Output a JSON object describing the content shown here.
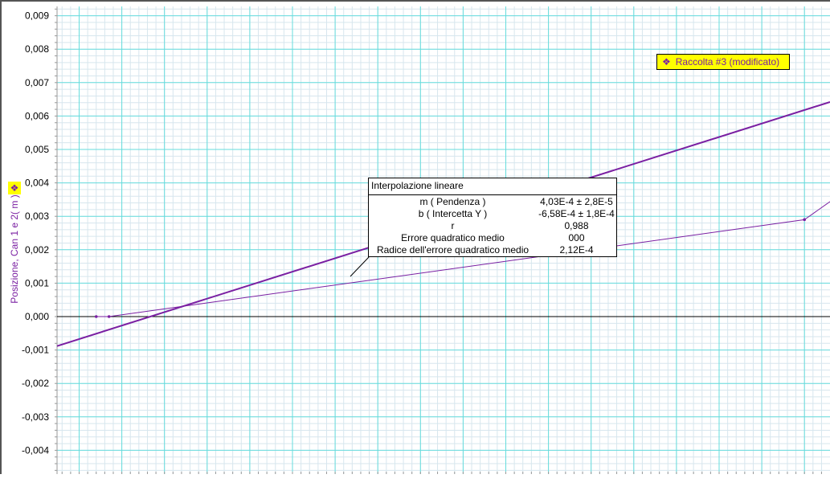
{
  "chart_data": {
    "type": "line",
    "ylabel": "Posizione, Can 1 e 2( m )",
    "ylim": [
      -0.0047,
      0.0093
    ],
    "y_ticks": [
      "0,009",
      "0,008",
      "0,007",
      "0,006",
      "0,005",
      "0,004",
      "0,003",
      "0,002",
      "0,001",
      "0,000",
      "-0,001",
      "-0,002",
      "-0,003",
      "-0,004"
    ],
    "y_tick_values": [
      0.009,
      0.008,
      0.007,
      0.006,
      0.005,
      0.004,
      0.003,
      0.002,
      0.001,
      0.0,
      -0.001,
      -0.002,
      -0.003,
      -0.004
    ],
    "x_tick_labels_visible": false,
    "grid": true,
    "legend": {
      "label": "Raccolta #3 (modificato)",
      "placement": "top-right"
    },
    "series": [
      {
        "name": "Raccolta #3 (modificato)",
        "points": [
          [
            0.4,
            0.0
          ],
          [
            0.7,
            0.0
          ],
          [
            17.0,
            0.0029
          ],
          [
            18.0,
            0.0038
          ]
        ]
      }
    ],
    "fit": {
      "title": "Interpolazione lineare",
      "slope": 0.000403,
      "intercept": -0.000658,
      "rows": [
        {
          "label": "m ( Pendenza )",
          "value": "4,03E-4 ± 2,8E-5"
        },
        {
          "label": "b ( Intercetta Y )",
          "value": "-6,58E-4 ± 1,8E-4"
        },
        {
          "label": "r",
          "value": "0,988"
        },
        {
          "label": "Errore quadratico medio",
          "value": "000"
        },
        {
          "label": "Radice dell'errore quadratico medio",
          "value": "2,12E-4"
        }
      ]
    }
  },
  "colors": {
    "grid_major": "#66dddd",
    "grid_minor": "#d7e6ee",
    "series": "#7a1fa2",
    "legend_bg": "#ffff00"
  },
  "icons": {
    "legend_glyph": "diamond-dots-icon",
    "axis_glyph": "diamond-dots-icon"
  }
}
